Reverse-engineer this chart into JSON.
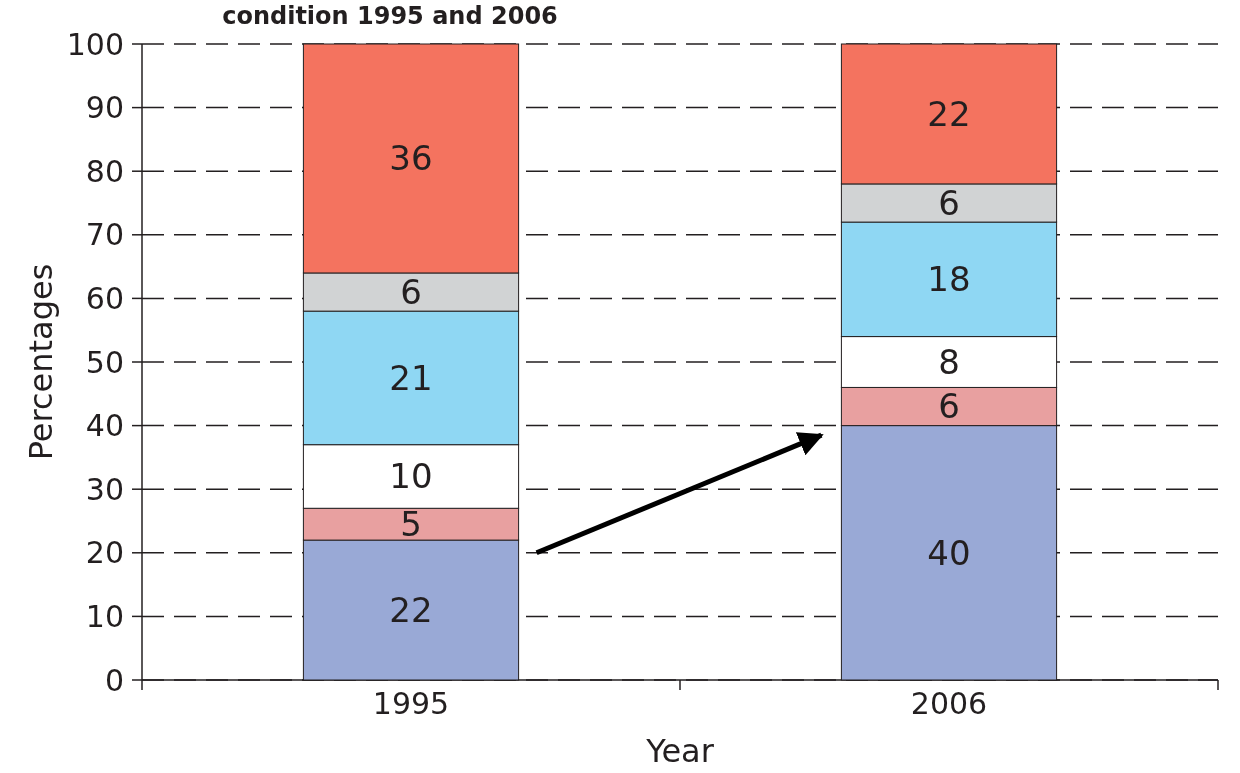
{
  "chart_data": {
    "type": "bar",
    "title": "condition 1995 and 2006",
    "xlabel": "Year",
    "ylabel": "Percentages",
    "categories": [
      "1995",
      "2006"
    ],
    "stacked": true,
    "data_labels": true,
    "grid": "y",
    "line_style": "dashed",
    "ylim": [
      0,
      100
    ],
    "yticks": [
      0,
      10,
      20,
      30,
      40,
      50,
      60,
      70,
      80,
      90,
      100
    ],
    "series": [
      {
        "color": "#99a9d6",
        "values": [
          22,
          40
        ]
      },
      {
        "color": "#e8a0a0",
        "values": [
          5,
          6
        ]
      },
      {
        "color": "#ffffff",
        "values": [
          10,
          8
        ]
      },
      {
        "color": "#8fd7f3",
        "values": [
          21,
          18
        ]
      },
      {
        "color": "#d1d3d4",
        "values": [
          6,
          6
        ]
      },
      {
        "color": "#f4735f",
        "values": [
          36,
          22
        ]
      }
    ]
  }
}
